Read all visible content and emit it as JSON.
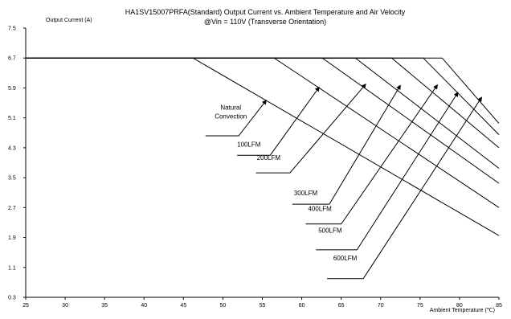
{
  "chart_data": {
    "type": "line",
    "title": "HA1SV15007PRFA(Standard)  Output Current vs. Ambient Temperature and Air Velocity",
    "subtitle": "@Vin = 110V (Transverse Orientation)",
    "ylabel": "Output Current (A)",
    "xlabel": "Ambient Temperature (℃)",
    "xlim": [
      25,
      85
    ],
    "ylim": [
      0.3,
      7.5
    ],
    "x_ticks": [
      "25",
      "30",
      "35",
      "40",
      "45",
      "50",
      "55",
      "60",
      "65",
      "70",
      "75",
      "80",
      "85"
    ],
    "y_ticks": [
      "7.5",
      "6.7",
      "5.9",
      "5.1",
      "4.3",
      "3.5",
      "2.7",
      "1.9",
      "1.1",
      "0.3"
    ],
    "grid": false,
    "series": [
      {
        "name": "Natural Convection",
        "x": [
          25,
          46.2,
          85
        ],
        "y": [
          6.7,
          6.7,
          1.95
        ]
      },
      {
        "name": "100LFM",
        "x": [
          25,
          56.5,
          85
        ],
        "y": [
          6.7,
          6.7,
          2.7
        ]
      },
      {
        "name": "200LFM",
        "x": [
          25,
          62.6,
          85
        ],
        "y": [
          6.7,
          6.7,
          3.35
        ]
      },
      {
        "name": "300LFM",
        "x": [
          25,
          66.8,
          85
        ],
        "y": [
          6.7,
          6.7,
          3.75
        ]
      },
      {
        "name": "400LFM",
        "x": [
          25,
          71.4,
          85
        ],
        "y": [
          6.7,
          6.7,
          4.3
        ]
      },
      {
        "name": "500LFM",
        "x": [
          25,
          75.4,
          85
        ],
        "y": [
          6.7,
          6.7,
          4.65
        ]
      },
      {
        "name": "600LFM",
        "x": [
          25,
          77.8,
          85
        ],
        "y": [
          6.7,
          6.7,
          4.95
        ]
      }
    ],
    "annotations": [
      {
        "lines": [
          "Natural",
          "Convection"
        ],
        "text_x": 51.0,
        "text_y": 5.32,
        "line_dy": 0.24,
        "ux1": 47.8,
        "ux2": 52.0,
        "uy": 4.62,
        "ax": 55.5,
        "ay": 5.57
      },
      {
        "lines": [
          "100LFM"
        ],
        "text_x": 53.3,
        "text_y": 4.33,
        "line_dy": 0,
        "ux1": 51.8,
        "ux2": 56.0,
        "uy": 4.1,
        "ax": 62.2,
        "ay": 5.92
      },
      {
        "lines": [
          "200LFM"
        ],
        "text_x": 55.8,
        "text_y": 3.97,
        "line_dy": 0,
        "ux1": 54.2,
        "ux2": 58.5,
        "uy": 3.63,
        "ax": 68.1,
        "ay": 6.0
      },
      {
        "lines": [
          "300LFM"
        ],
        "text_x": 60.5,
        "text_y": 3.03,
        "line_dy": 0,
        "ux1": 58.8,
        "ux2": 63.5,
        "uy": 2.79,
        "ax": 72.5,
        "ay": 5.97
      },
      {
        "lines": [
          "400LFM"
        ],
        "text_x": 62.3,
        "text_y": 2.61,
        "line_dy": 0,
        "ux1": 60.5,
        "ux2": 65.0,
        "uy": 2.26,
        "ax": 77.2,
        "ay": 5.98
      },
      {
        "lines": [
          "500LFM"
        ],
        "text_x": 63.6,
        "text_y": 2.03,
        "line_dy": 0,
        "ux1": 61.8,
        "ux2": 67.0,
        "uy": 1.57,
        "ax": 79.8,
        "ay": 5.78
      },
      {
        "lines": [
          "600LFM"
        ],
        "text_x": 65.5,
        "text_y": 1.29,
        "line_dy": 0,
        "ux1": 63.2,
        "ux2": 67.8,
        "uy": 0.8,
        "ax": 82.8,
        "ay": 5.65
      }
    ]
  }
}
